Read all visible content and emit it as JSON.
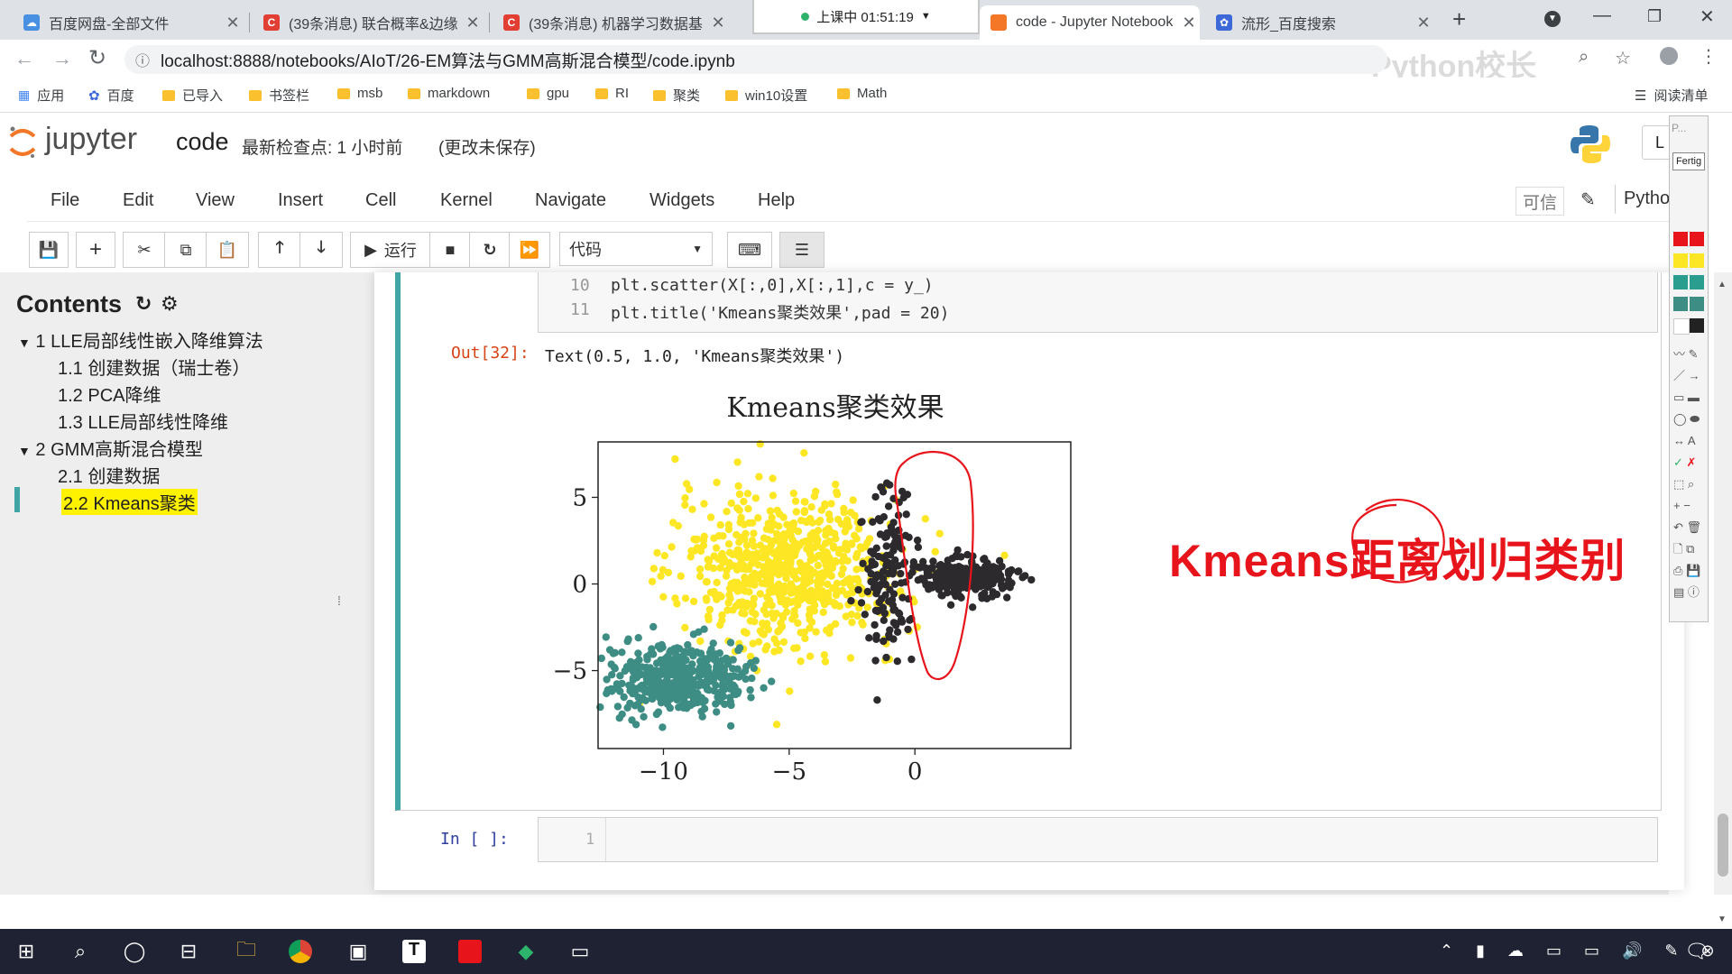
{
  "browser": {
    "tabs": [
      {
        "title": "百度网盘-全部文件",
        "active": false
      },
      {
        "title": "(39条消息) 联合概率&边缘",
        "active": false
      },
      {
        "title": "(39条消息) 机器学习数据基",
        "active": false
      },
      {
        "title": "code - Jupyter Notebook",
        "active": true
      },
      {
        "title": "流形_百度搜索",
        "active": false
      }
    ],
    "class_status": "上课中 01:51:19",
    "url": "localhost:8888/notebooks/AIoT/26-EM算法与GMM高斯混合模型/code.ipynb",
    "watermark": "Python校长",
    "reading_list": "阅读清单",
    "bookmarks": [
      "应用",
      "百度",
      "已导入",
      "书签栏",
      "msb",
      "markdown",
      "gpu",
      "RI",
      "聚类",
      "win10设置",
      "Math"
    ]
  },
  "jupyter": {
    "logo_text": "jupyter",
    "notebook_name": "code",
    "checkpoint": "最新检查点: 1 小时前",
    "unsaved": "(更改未保存)",
    "logout_partial": "L",
    "menu": [
      "File",
      "Edit",
      "View",
      "Insert",
      "Cell",
      "Kernel",
      "Navigate",
      "Widgets",
      "Help"
    ],
    "trusted": "可信",
    "kernel_partial": "Pytho",
    "run_label": "运行",
    "cell_type": "代码"
  },
  "toc": {
    "title": "Contents",
    "items": [
      {
        "num": "1",
        "label": "LLE局部线性嵌入降维算法",
        "level": 1
      },
      {
        "num": "1.1",
        "label": "创建数据（瑞士卷）",
        "level": 2
      },
      {
        "num": "1.2",
        "label": "PCA降维",
        "level": 2
      },
      {
        "num": "1.3",
        "label": "LLE局部线性降维",
        "level": 2
      },
      {
        "num": "2",
        "label": "GMM高斯混合模型",
        "level": 1
      },
      {
        "num": "2.1",
        "label": "创建数据",
        "level": 2
      },
      {
        "num": "2.2",
        "label": "Kmeans聚类",
        "level": 2,
        "active": true
      }
    ]
  },
  "cell": {
    "code_lines": [
      {
        "num": "10",
        "text": "plt.scatter(X[:,0],X[:,1],c = y_)"
      },
      {
        "num": "11",
        "text": "plt.title('Kmeans聚类效果',pad = 20)"
      }
    ],
    "out_prompt": "Out[32]:",
    "out_text": "Text(0.5, 1.0, 'Kmeans聚类效果')",
    "empty_prompt": "In [ ]:",
    "empty_line_num": "1"
  },
  "annotation": {
    "text": "Kmeans距离划归类别",
    "color": "#e8141c"
  },
  "annot_panel": {
    "title_partial": "P...",
    "button": "Fertig"
  },
  "chart_data": {
    "type": "scatter",
    "title": "Kmeans聚类效果",
    "xlabel": "",
    "ylabel": "",
    "xlim": [
      -12.6,
      6.2
    ],
    "ylim": [
      -9.5,
      8.2
    ],
    "xticks": [
      "−10",
      "−5",
      "0"
    ],
    "yticks": [
      "5",
      "0",
      "−5"
    ],
    "grid": false,
    "series": [
      {
        "color": "#fde725",
        "center": [
          -5.0,
          0.8
        ],
        "spread": [
          2.2,
          2.2
        ],
        "count": 700
      },
      {
        "color": "#3e8d84",
        "center": [
          -9.5,
          -5.5
        ],
        "spread": [
          1.4,
          1.0
        ],
        "count": 420
      },
      {
        "color": "#2d2a2e",
        "center": [
          2.0,
          0.4
        ],
        "spread": [
          0.9,
          0.55
        ],
        "count": 260
      },
      {
        "color": "#2d2a2e",
        "center": [
          -1.0,
          0.5
        ],
        "spread": [
          0.6,
          2.4
        ],
        "count": 140
      }
    ]
  }
}
